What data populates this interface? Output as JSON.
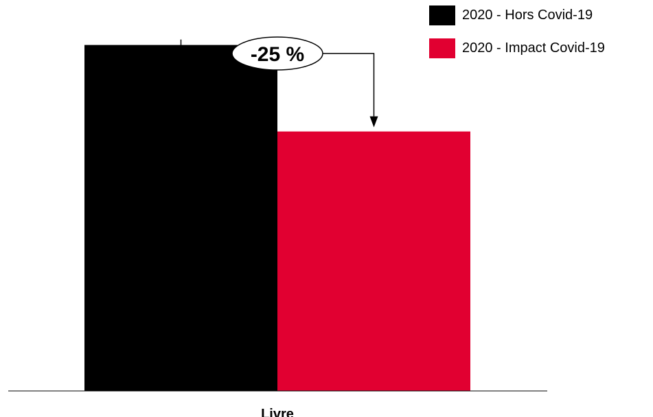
{
  "chart_data": {
    "type": "bar",
    "categories": [
      "Livre"
    ],
    "series": [
      {
        "name": "2020 - Hors Covid-19",
        "values": [
          100
        ],
        "color": "#000000"
      },
      {
        "name": "2020 - Impact Covid-19",
        "values": [
          75
        ],
        "color": "#e10031"
      }
    ],
    "ylim": [
      0,
      113
    ],
    "annotation": {
      "label": "-25 %",
      "from_series": 0,
      "to_series": 1
    },
    "legend_position": "top-right",
    "grid": false
  }
}
